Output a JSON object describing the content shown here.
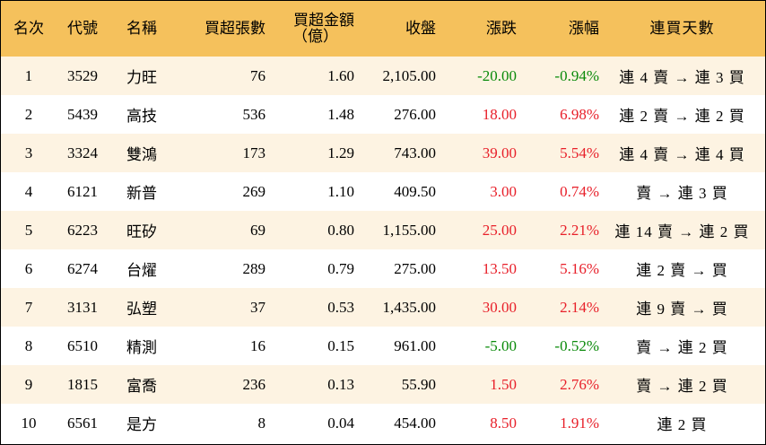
{
  "table": {
    "headers": {
      "rank": "名次",
      "code": "代號",
      "name": "名稱",
      "net_lots": "買超張數",
      "net_amount_line1": "買超金額",
      "net_amount_line2": "（億）",
      "close": "收盤",
      "change": "漲跌",
      "pct": "漲幅",
      "streak": "連買天數"
    },
    "colors": {
      "header_bg": "#f5c15c",
      "odd_row_bg": "#fdf3e2",
      "up": "#e8202a",
      "down": "#0a8a0a"
    },
    "rows": [
      {
        "rank": "1",
        "code": "3529",
        "name": "力旺",
        "net_lots": "76",
        "net_amount": "1.60",
        "close": "2,105.00",
        "change": "-20.00",
        "pct": "-0.94%",
        "direction": "down",
        "streak": "連 4 賣 → 連 3 買"
      },
      {
        "rank": "2",
        "code": "5439",
        "name": "高技",
        "net_lots": "536",
        "net_amount": "1.48",
        "close": "276.00",
        "change": "18.00",
        "pct": "6.98%",
        "direction": "up",
        "streak": "連 2 賣 → 連 2 買"
      },
      {
        "rank": "3",
        "code": "3324",
        "name": "雙鴻",
        "net_lots": "173",
        "net_amount": "1.29",
        "close": "743.00",
        "change": "39.00",
        "pct": "5.54%",
        "direction": "up",
        "streak": "連 4 賣 → 連 4 買"
      },
      {
        "rank": "4",
        "code": "6121",
        "name": "新普",
        "net_lots": "269",
        "net_amount": "1.10",
        "close": "409.50",
        "change": "3.00",
        "pct": "0.74%",
        "direction": "up",
        "streak": "賣 → 連 3 買"
      },
      {
        "rank": "5",
        "code": "6223",
        "name": "旺矽",
        "net_lots": "69",
        "net_amount": "0.80",
        "close": "1,155.00",
        "change": "25.00",
        "pct": "2.21%",
        "direction": "up",
        "streak": "連 14 賣 → 連 2 買"
      },
      {
        "rank": "6",
        "code": "6274",
        "name": "台燿",
        "net_lots": "289",
        "net_amount": "0.79",
        "close": "275.00",
        "change": "13.50",
        "pct": "5.16%",
        "direction": "up",
        "streak": "連 2 賣 → 買"
      },
      {
        "rank": "7",
        "code": "3131",
        "name": "弘塑",
        "net_lots": "37",
        "net_amount": "0.53",
        "close": "1,435.00",
        "change": "30.00",
        "pct": "2.14%",
        "direction": "up",
        "streak": "連 9 賣 → 買"
      },
      {
        "rank": "8",
        "code": "6510",
        "name": "精測",
        "net_lots": "16",
        "net_amount": "0.15",
        "close": "961.00",
        "change": "-5.00",
        "pct": "-0.52%",
        "direction": "down",
        "streak": "賣 → 連 2 買"
      },
      {
        "rank": "9",
        "code": "1815",
        "name": "富喬",
        "net_lots": "236",
        "net_amount": "0.13",
        "close": "55.90",
        "change": "1.50",
        "pct": "2.76%",
        "direction": "up",
        "streak": "賣 → 連 2 買"
      },
      {
        "rank": "10",
        "code": "6561",
        "name": "是方",
        "net_lots": "8",
        "net_amount": "0.04",
        "close": "454.00",
        "change": "8.50",
        "pct": "1.91%",
        "direction": "up",
        "streak": "連 2 買"
      }
    ]
  }
}
